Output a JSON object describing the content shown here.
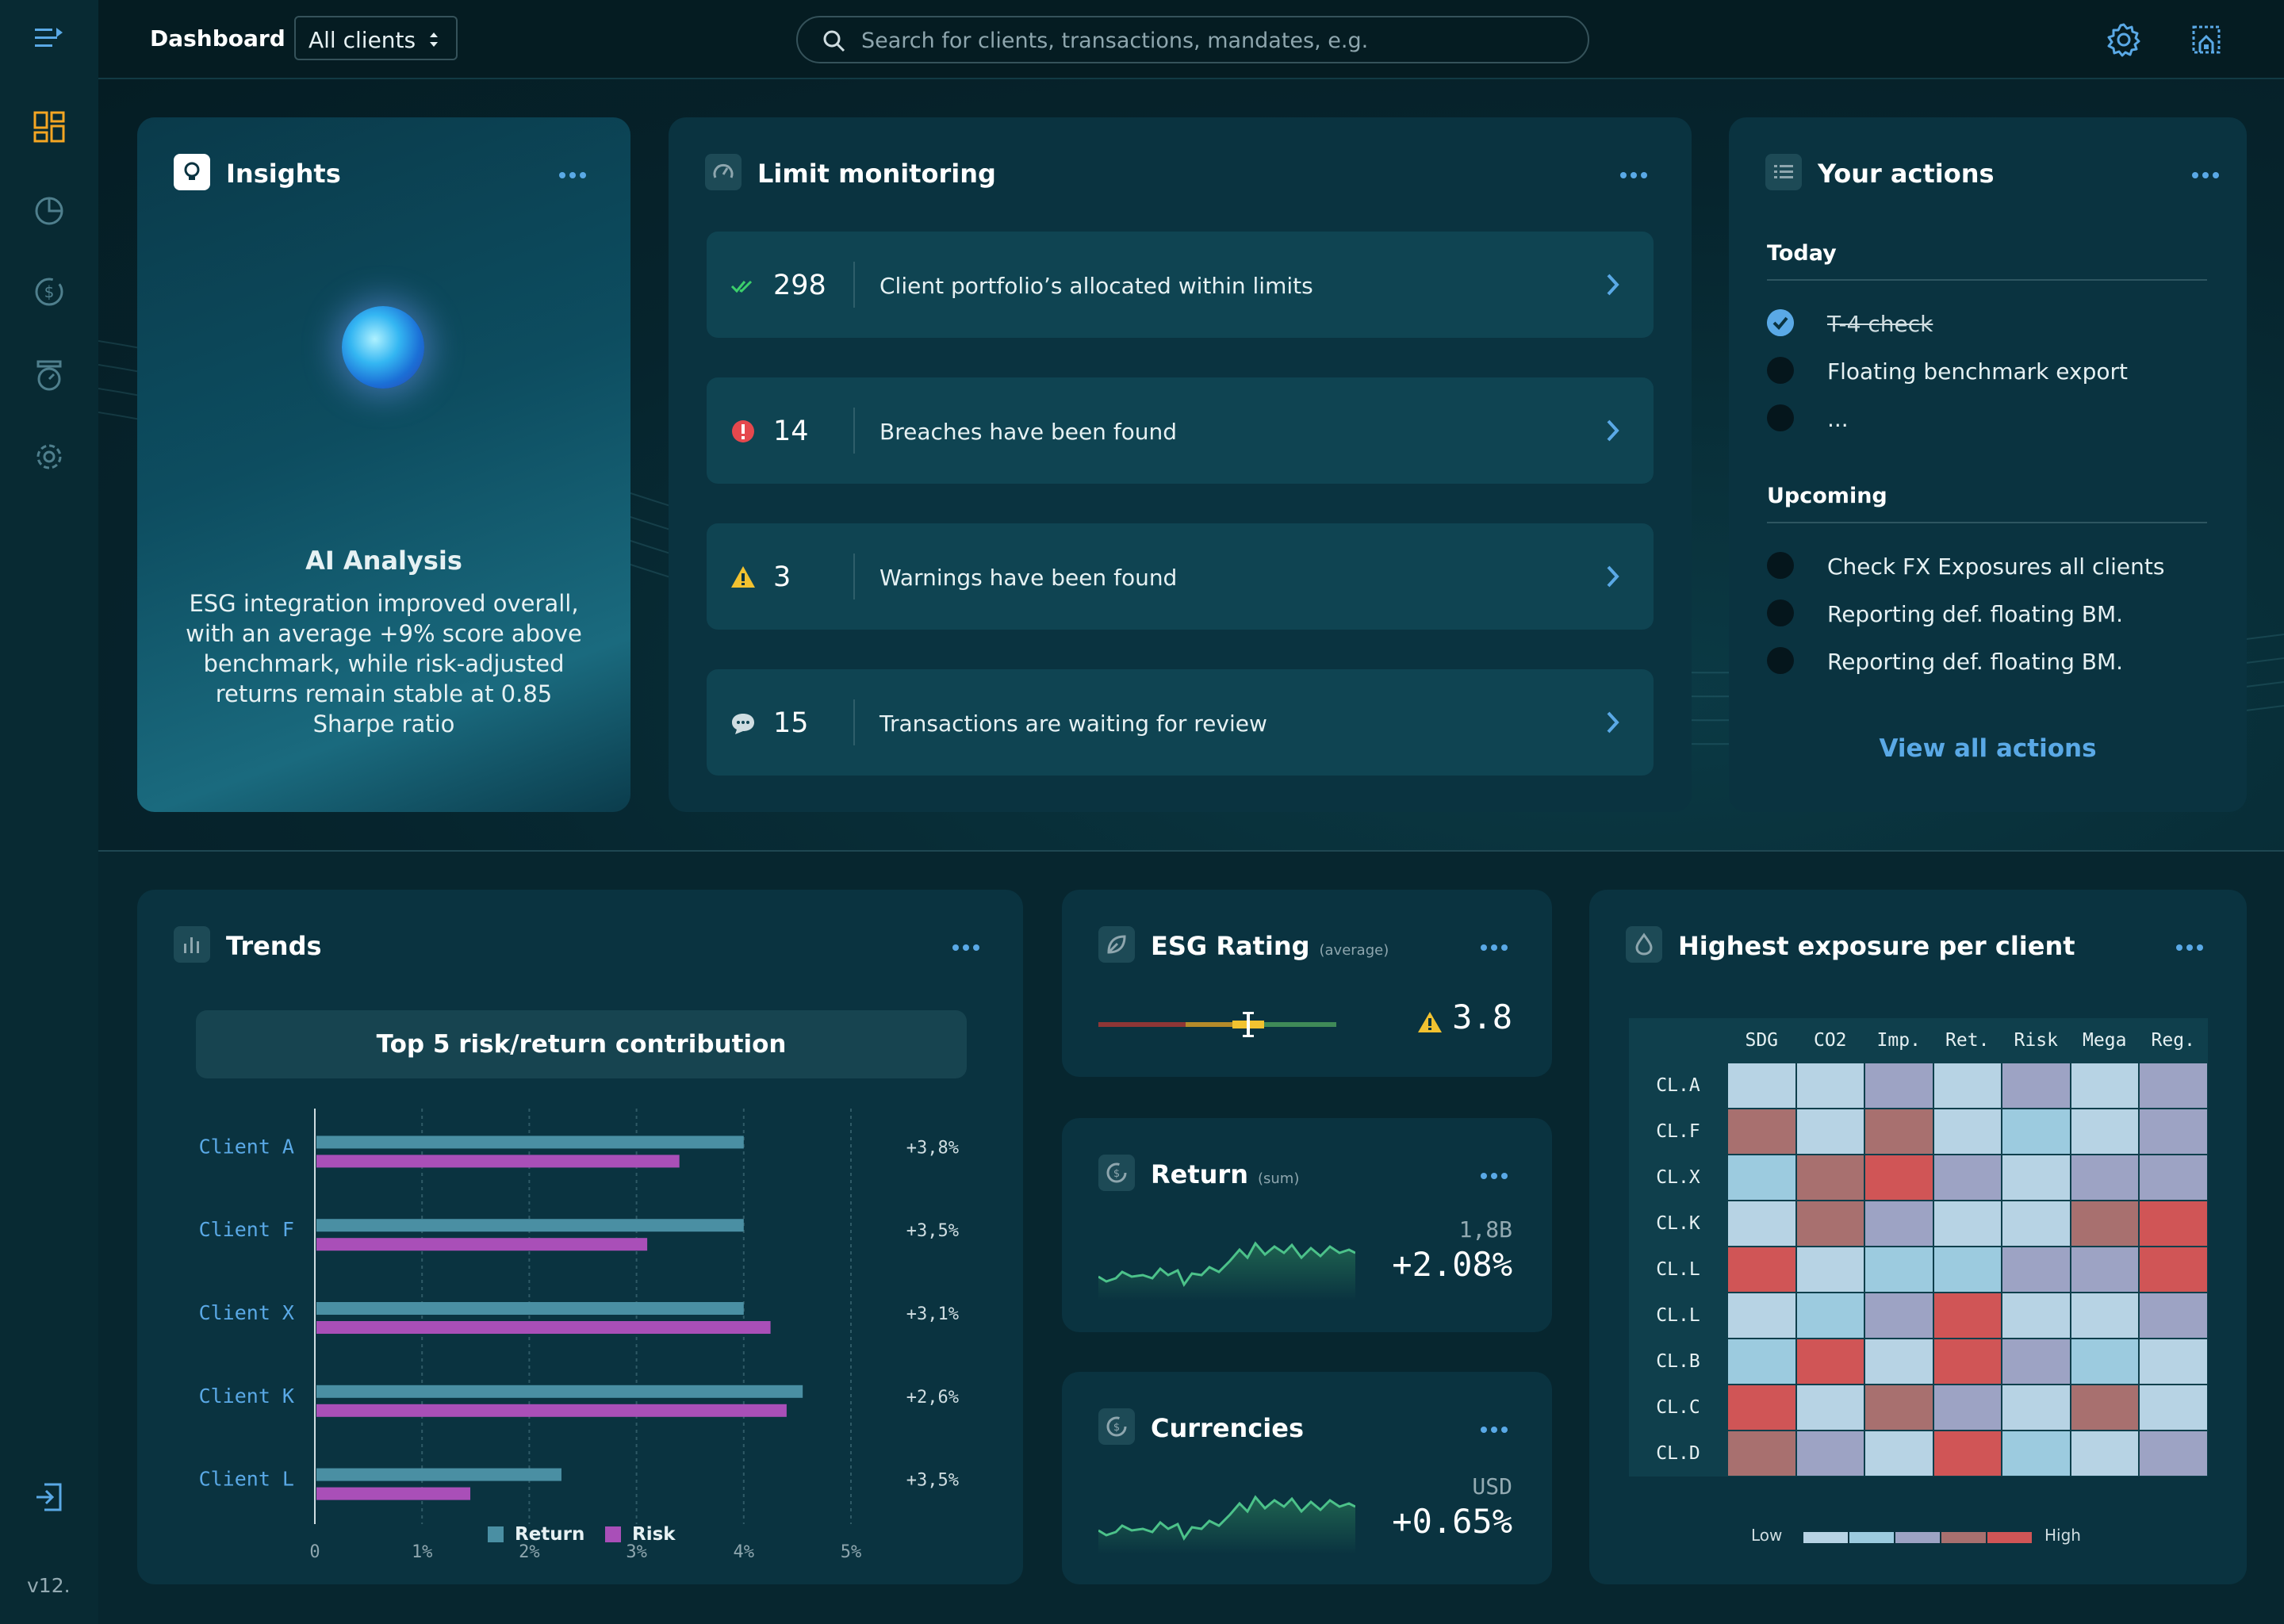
{
  "version": "v12.",
  "header": {
    "breadcrumb": "Dashboard",
    "client_filter": "All clients",
    "search_placeholder": "Search for clients, transactions, mandates, e.g."
  },
  "insights": {
    "title": "Insights",
    "ai_title": "AI Analysis",
    "text": "ESG integration improved overall, with an average +9% score above benchmark, while risk-adjusted returns remain stable at 0.85 Sharpe ratio",
    "active_slide": 1,
    "slide_count": 3
  },
  "limit": {
    "title": "Limit monitoring",
    "rows": [
      {
        "count": "298",
        "text": "Client portfolio’s allocated within limits",
        "icon": "double-check-icon",
        "color": "#3ccf6b"
      },
      {
        "count": "14",
        "text": "Breaches have been found",
        "icon": "alert-circle-icon",
        "color": "#e5484d"
      },
      {
        "count": "3",
        "text": "Warnings have been found",
        "icon": "warning-triangle-icon",
        "color": "#f2c230"
      },
      {
        "count": "15",
        "text": "Transactions are waiting for review",
        "icon": "chat-bubble-icon",
        "color": "#cfdde1"
      }
    ]
  },
  "actions": {
    "title": "Your actions",
    "today_label": "Today",
    "today": [
      {
        "text": "T-4 check",
        "done": true
      },
      {
        "text": "Floating benchmark export",
        "done": false
      },
      {
        "text": "...",
        "done": false
      }
    ],
    "upcoming_label": "Upcoming",
    "upcoming": [
      {
        "text": "Check FX Exposures all clients",
        "done": false
      },
      {
        "text": "Reporting def. floating BM.",
        "done": false
      },
      {
        "text": "Reporting def. floating BM.",
        "done": false
      }
    ],
    "view_all": "View all actions"
  },
  "trends": {
    "title": "Trends",
    "caption": "Top 5 risk/return contribution",
    "chart_data": {
      "type": "bar",
      "orientation": "horizontal",
      "categories": [
        "Client A",
        "Client F",
        "Client X",
        "Client K",
        "Client L"
      ],
      "series": [
        {
          "name": "Return",
          "color": "#4a8fa3",
          "values": [
            4.0,
            4.0,
            4.0,
            4.55,
            2.3
          ]
        },
        {
          "name": "Risk",
          "color": "#a94fb8",
          "values": [
            3.4,
            3.1,
            4.25,
            4.4,
            1.45
          ]
        }
      ],
      "value_labels": [
        "+3,8%",
        "+3,5%",
        "+3,1%",
        "+2,6%",
        "+3,5%"
      ],
      "ticks": [
        "0",
        "1%",
        "2%",
        "3%",
        "4%",
        "5%"
      ],
      "xlim": [
        0,
        5
      ],
      "legend_position": "bottom",
      "grid": true
    }
  },
  "esg": {
    "title": "ESG Rating",
    "subtitle": "(average)",
    "value": "3.8",
    "marker_fraction": 0.63
  },
  "return_card": {
    "title": "Return",
    "subtitle": "(sum)",
    "small": "1,8B",
    "value": "+2.08%"
  },
  "currencies": {
    "title": "Currencies",
    "small": "USD",
    "value": "+0.65%"
  },
  "exposure": {
    "title": "Highest exposure per client",
    "chart_data": {
      "type": "heatmap",
      "columns": [
        "SDG",
        "CO2",
        "Imp.",
        "Ret.",
        "Risk",
        "Mega",
        "Reg."
      ],
      "rows": [
        "CL.A",
        "CL.F",
        "CL.X",
        "CL.K",
        "CL.L",
        "CL.L",
        "CL.B",
        "CL.C",
        "CL.D"
      ],
      "levels": [
        [
          1,
          1,
          3,
          1,
          3,
          1,
          3
        ],
        [
          4,
          1,
          4,
          1,
          2,
          1,
          3
        ],
        [
          2,
          4,
          5,
          3,
          1,
          3,
          3
        ],
        [
          1,
          4,
          3,
          1,
          1,
          4,
          5
        ],
        [
          5,
          1,
          2,
          2,
          3,
          3,
          5
        ],
        [
          1,
          2,
          3,
          5,
          1,
          1,
          3
        ],
        [
          2,
          5,
          1,
          5,
          3,
          2,
          1
        ],
        [
          5,
          1,
          4,
          3,
          1,
          4,
          1
        ],
        [
          4,
          3,
          1,
          5,
          2,
          1,
          3
        ]
      ],
      "scale_colors": [
        "#b7d3e4",
        "#9ccbdf",
        "#9da3c4",
        "#a8706f",
        "#d05556"
      ],
      "legend_low": "Low",
      "legend_high": "High"
    }
  },
  "colors": {
    "accent": "#5aa9e6",
    "highlight": "#f5a623"
  }
}
